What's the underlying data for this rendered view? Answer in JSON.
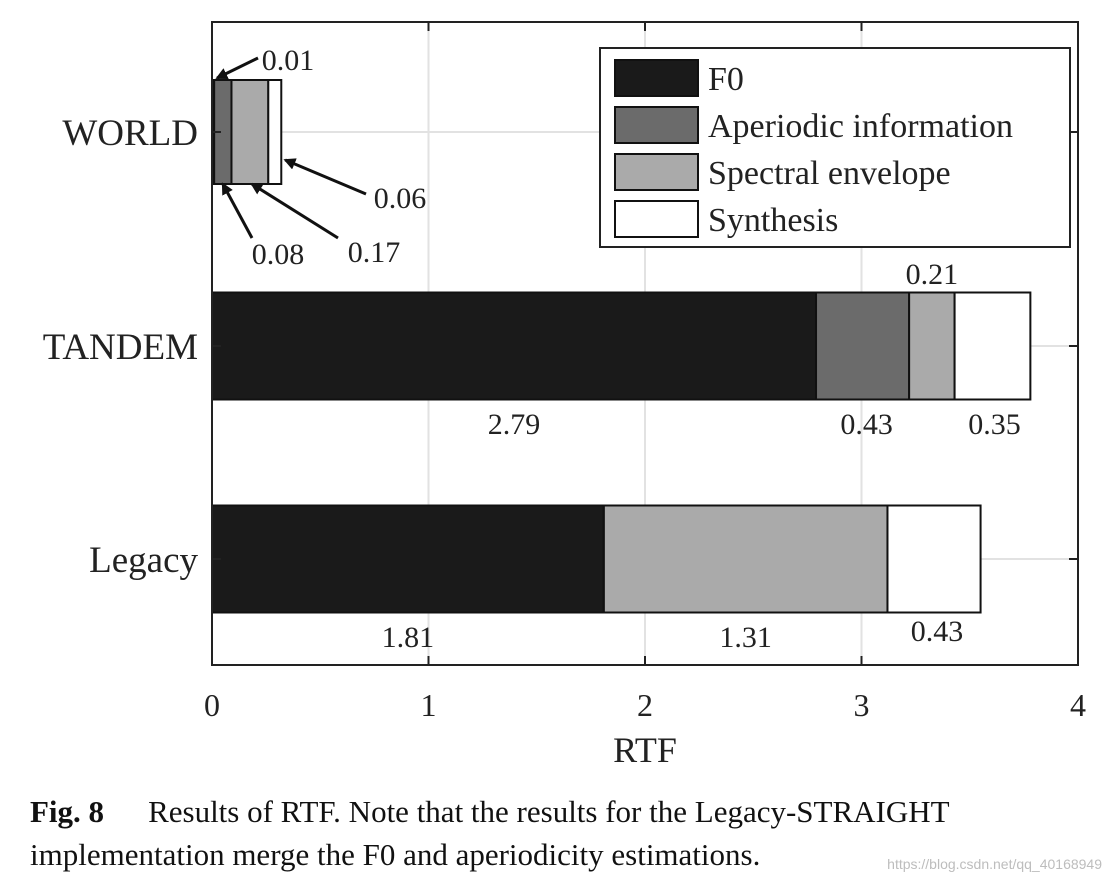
{
  "chart_data": {
    "type": "bar",
    "orientation": "horizontal",
    "stacked": true,
    "categories": [
      "WORLD",
      "TANDEM",
      "Legacy"
    ],
    "series": [
      {
        "name": "F0",
        "color": "#1a1a1a",
        "values": [
          0.01,
          2.79,
          1.81
        ]
      },
      {
        "name": "Aperiodic information",
        "color": "#6b6b6b",
        "values": [
          0.08,
          0.43,
          0
        ]
      },
      {
        "name": "Spectral envelope",
        "color": "#aaaaaa",
        "values": [
          0.17,
          0.21,
          1.31
        ]
      },
      {
        "name": "Synthesis",
        "color": "#ffffff",
        "values": [
          0.06,
          0.35,
          0.43
        ]
      }
    ],
    "xlabel": "RTF",
    "ylabel": "",
    "xlim": [
      0,
      4
    ],
    "xticks": [
      0,
      1,
      2,
      3,
      4
    ],
    "grid": true,
    "legend_position": "top-right",
    "value_labels": [
      {
        "category": "WORLD",
        "series": "F0",
        "text": "0.01"
      },
      {
        "category": "WORLD",
        "series": "Aperiodic information",
        "text": "0.08"
      },
      {
        "category": "WORLD",
        "series": "Spectral envelope",
        "text": "0.17"
      },
      {
        "category": "WORLD",
        "series": "Synthesis",
        "text": "0.06"
      },
      {
        "category": "TANDEM",
        "series": "F0",
        "text": "2.79"
      },
      {
        "category": "TANDEM",
        "series": "Aperiodic information",
        "text": "0.43"
      },
      {
        "category": "TANDEM",
        "series": "Spectral envelope",
        "text": "0.21"
      },
      {
        "category": "TANDEM",
        "series": "Synthesis",
        "text": "0.35"
      },
      {
        "category": "Legacy",
        "series": "F0",
        "text": "1.81"
      },
      {
        "category": "Legacy",
        "series": "Spectral envelope",
        "text": "1.31"
      },
      {
        "category": "Legacy",
        "series": "Synthesis",
        "text": "0.43"
      }
    ]
  },
  "caption": {
    "figure_label": "Fig. 8",
    "text": "Results of RTF. Note that the results for the Legacy-STRAIGHT implementation merge the F0 and aperiodicity estimations."
  },
  "watermark": "https://blog.csdn.net/qq_40168949"
}
